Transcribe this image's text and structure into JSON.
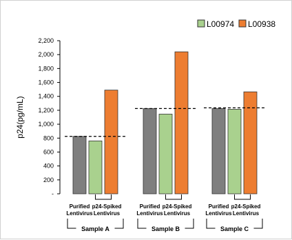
{
  "chart_data": {
    "type": "bar",
    "ylabel": "p24(pg/mL)",
    "ylim": [
      0,
      2200
    ],
    "y_ticks": [
      "2,200",
      "2,000",
      "1,800",
      "1,600",
      "1,400",
      "1,200",
      "1,000",
      "800",
      "600",
      "400",
      "200",
      "-"
    ],
    "grid": false,
    "legend_position": "top-right",
    "legend": [
      {
        "name": "L00974",
        "color": "#a9d18e"
      },
      {
        "name": "L00938",
        "color": "#ed7d31"
      }
    ],
    "groups": [
      {
        "name": "Sample A",
        "reference_line": 825,
        "categories": [
          "Purified\nLentivirus",
          "p24-Spiked\nLentivirus"
        ],
        "bars": [
          {
            "value": 825,
            "color": "#7f7f7f"
          },
          {
            "value": 760,
            "color": "#a9d18e"
          },
          {
            "value": 1490,
            "color": "#ed7d31"
          }
        ]
      },
      {
        "name": "Sample B",
        "reference_line": 1225,
        "categories": [
          "Purified\nLentivirus",
          "p24-Spiked\nLentivirus"
        ],
        "bars": [
          {
            "value": 1225,
            "color": "#7f7f7f"
          },
          {
            "value": 1145,
            "color": "#a9d18e"
          },
          {
            "value": 2040,
            "color": "#ed7d31"
          }
        ]
      },
      {
        "name": "Sample C",
        "reference_line": 1235,
        "categories": [
          "Purified\nLentivirus",
          "p24-Spiked\nLentivirus"
        ],
        "bars": [
          {
            "value": 1225,
            "color": "#7f7f7f"
          },
          {
            "value": 1215,
            "color": "#a9d18e"
          },
          {
            "value": 1465,
            "color": "#ed7d31"
          }
        ]
      }
    ]
  }
}
